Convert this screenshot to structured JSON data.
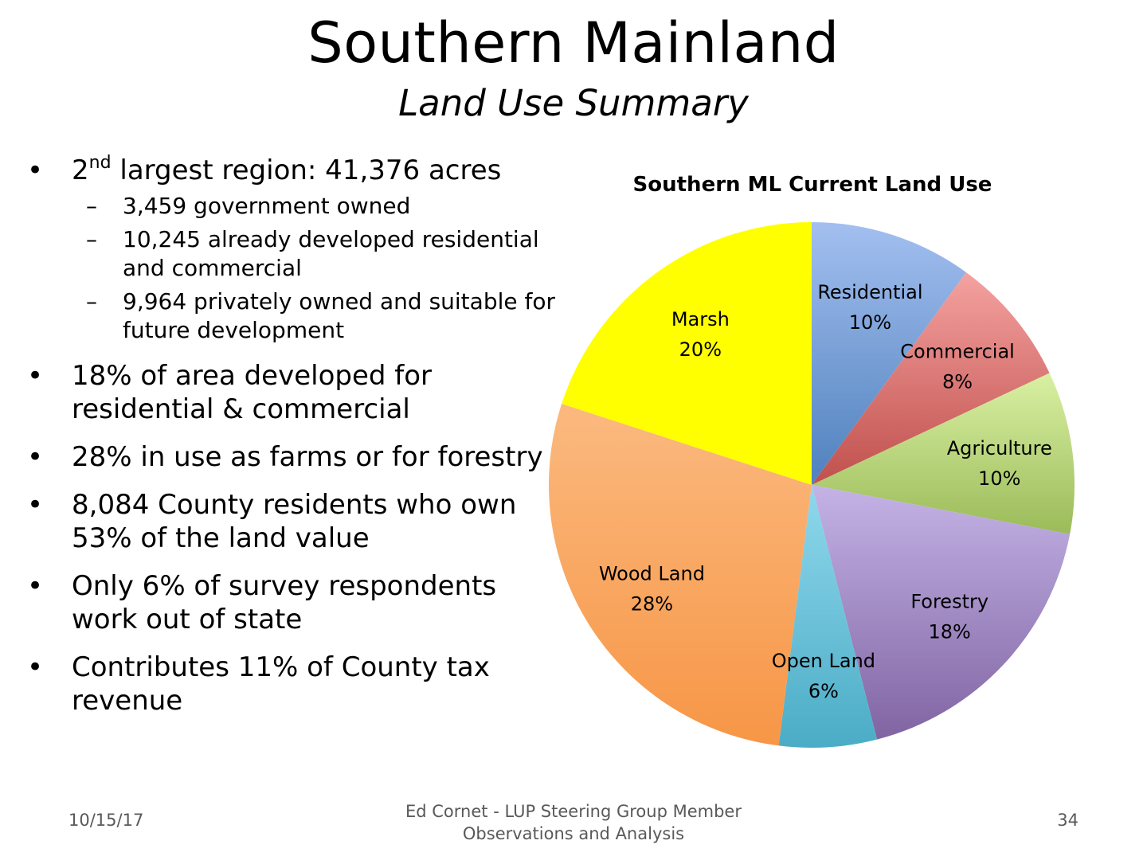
{
  "slide": {
    "title": "Southern Mainland",
    "subtitle": "Land Use Summary"
  },
  "bullets": [
    {
      "marker": "•",
      "prefix": "2",
      "sup": "nd",
      "text": " largest region: 41,376 acres",
      "subitems": [
        {
          "marker": "–",
          "text": "3,459 government owned"
        },
        {
          "marker": "–",
          "text": "10,245 already developed residential and commercial"
        },
        {
          "marker": "–",
          "text": "9,964 privately owned and suitable for future development"
        }
      ]
    },
    {
      "marker": "•",
      "prefix": "",
      "sup": "",
      "text": "18% of area developed for residential & commercial",
      "subitems": []
    },
    {
      "marker": "•",
      "prefix": "",
      "sup": "",
      "text": "28% in use as farms or for forestry",
      "subitems": []
    },
    {
      "marker": "•",
      "prefix": "",
      "sup": "",
      "text": "8,084 County residents who own 53% of the land value",
      "subitems": []
    },
    {
      "marker": "•",
      "prefix": "",
      "sup": "",
      "text": "Only 6% of survey respondents work out of state",
      "subitems": []
    },
    {
      "marker": "•",
      "prefix": "",
      "sup": "",
      "text": "Contributes 11% of County tax revenue",
      "subitems": []
    }
  ],
  "chart_data": {
    "type": "pie",
    "title": "Southern ML Current Land Use",
    "start_angle": "12 o'clock",
    "direction": "clockwise",
    "legend": "none",
    "slices": [
      {
        "label": "Residential",
        "value": 10,
        "display": "10%",
        "color": "#4f81bd",
        "color_light": "#a3bff0"
      },
      {
        "label": "Commercial",
        "value": 8,
        "display": "8%",
        "color": "#c0504d",
        "color_light": "#f4a2a0"
      },
      {
        "label": "Agriculture",
        "value": 10,
        "display": "10%",
        "color": "#9bbb59",
        "color_light": "#d9f0a3"
      },
      {
        "label": "Forestry",
        "value": 18,
        "display": "18%",
        "color": "#8064a2",
        "color_light": "#c4b3e6"
      },
      {
        "label": "Open Land",
        "value": 6,
        "display": "6%",
        "color": "#4bacc6",
        "color_light": "#8fd8ec"
      },
      {
        "label": "Wood Land",
        "value": 28,
        "display": "28%",
        "color": "#f79646",
        "color_light": "#fbb97f"
      },
      {
        "label": "Marsh",
        "value": 20,
        "display": "20%",
        "color": "#ffff00",
        "color_light": "#ffff00"
      }
    ]
  },
  "footer": {
    "date": "10/15/17",
    "center_line1": "Ed Cornet - LUP Steering Group Member",
    "center_line2": "Observations and Analysis",
    "page": "34"
  }
}
